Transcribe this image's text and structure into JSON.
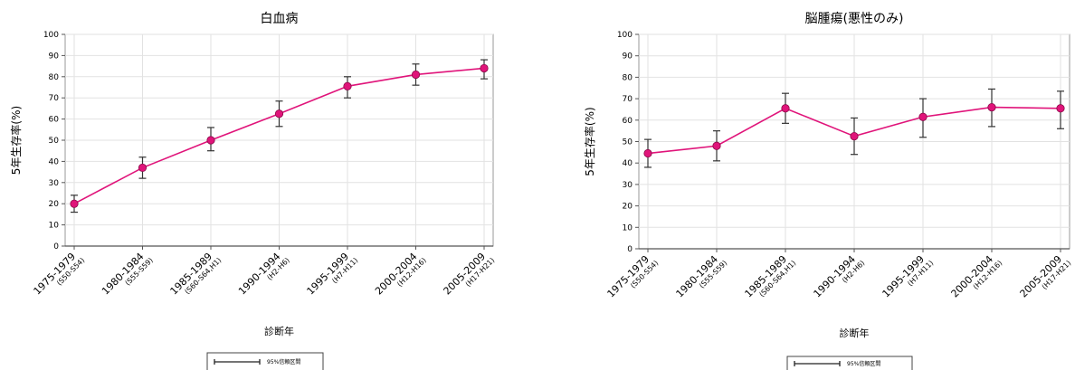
{
  "chart_data": [
    {
      "type": "line",
      "title": "白血病",
      "xlabel": "診断年",
      "ylabel": "5年生存率(%)",
      "ylim": [
        0,
        100
      ],
      "yticks": [
        0,
        10,
        20,
        30,
        40,
        50,
        60,
        70,
        80,
        90,
        100
      ],
      "grid": true,
      "categories": [
        "1975-1979",
        "1980-1984",
        "1985-1989",
        "1990-1994",
        "1995-1999",
        "2000-2004",
        "2005-2009"
      ],
      "category_sublabels": [
        "(S50-S54)",
        "(S55-S59)",
        "(S60-S64,H1)",
        "(H2-H6)",
        "(H7-H11)",
        "(H12-H16)",
        "(H17-H21)"
      ],
      "series": [
        {
          "values": [
            20,
            37,
            50,
            62.5,
            75.5,
            81,
            84
          ],
          "ci_low": [
            16,
            32,
            45,
            56.5,
            70,
            76,
            79
          ],
          "ci_high": [
            24,
            42,
            56,
            68.5,
            80,
            86,
            88
          ],
          "color": "#e0147a"
        }
      ],
      "legend": {
        "label": "95%信頼区間",
        "placement": "bottom"
      }
    },
    {
      "type": "line",
      "title": "脳腫瘍(悪性のみ)",
      "xlabel": "診断年",
      "ylabel": "5年生存率(%)",
      "ylim": [
        0,
        100
      ],
      "yticks": [
        0,
        10,
        20,
        30,
        40,
        50,
        60,
        70,
        80,
        90,
        100
      ],
      "grid": true,
      "categories": [
        "1975-1979",
        "1980-1984",
        "1985-1989",
        "1990-1994",
        "1995-1999",
        "2000-2004",
        "2005-2009"
      ],
      "category_sublabels": [
        "(S50-S54)",
        "(S55-S59)",
        "(S60-S64,H1)",
        "(H2-H6)",
        "(H7-H11)",
        "(H12-H16)",
        "(H17-H21)"
      ],
      "series": [
        {
          "values": [
            44.5,
            48,
            65.5,
            52.5,
            61.5,
            66,
            65.5
          ],
          "ci_low": [
            38,
            41,
            58.5,
            44,
            52,
            57,
            56
          ],
          "ci_high": [
            51,
            55,
            72.5,
            61,
            70,
            74.5,
            73.5
          ],
          "color": "#e0147a"
        }
      ],
      "legend": {
        "label": "95%信頼区間",
        "placement": "bottom"
      }
    }
  ]
}
